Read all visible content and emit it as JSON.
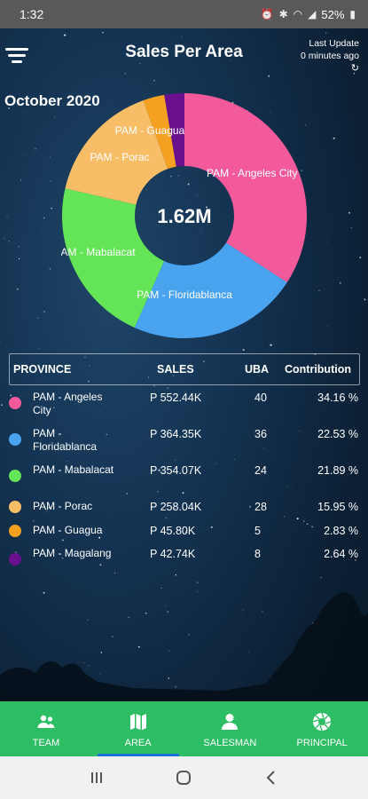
{
  "status_bar": {
    "time": "1:32",
    "battery": "52%",
    "icons": [
      "alarm-icon",
      "bluetooth-icon",
      "wifi-icon",
      "signal-icon",
      "battery-icon"
    ]
  },
  "header": {
    "title": "Sales Per Area",
    "last_update_label": "Last Update",
    "last_update_value": "0 minutes ago",
    "period": "October 2020"
  },
  "chart_data": {
    "type": "pie",
    "center_label": "1.62M",
    "slices": [
      {
        "label": "PAM - Angeles City",
        "value": 34.16,
        "color": "#f25a9b"
      },
      {
        "label": "PAM - Floridablanca",
        "value": 22.53,
        "color": "#4aa3ee"
      },
      {
        "label": "PAM - Mabalacat",
        "value": 21.89,
        "color": "#64e457"
      },
      {
        "label": "PAM - Porac",
        "value": 15.95,
        "color": "#f7bd67"
      },
      {
        "label": "PAM - Guagua",
        "value": 2.83,
        "color": "#f4a121"
      },
      {
        "label": "PAM - Magalang",
        "value": 2.64,
        "color": "#6a0f8e"
      }
    ]
  },
  "table": {
    "headers": {
      "province": "PROVINCE",
      "sales": "SALES",
      "uba": "UBA",
      "contribution": "Contribution"
    },
    "rows": [
      {
        "province": "PAM - Angeles City",
        "sales": "P 552.44K",
        "uba": "40",
        "contribution": "34.16 %",
        "color": "#f25a9b"
      },
      {
        "province": "PAM - Floridablanca",
        "sales": "P 364.35K",
        "uba": "36",
        "contribution": "22.53 %",
        "color": "#4aa3ee"
      },
      {
        "province": "PAM - Mabalacat",
        "sales": "P 354.07K",
        "uba": "24",
        "contribution": "21.89 %",
        "color": "#64e457"
      },
      {
        "province": "PAM - Porac",
        "sales": "P 258.04K",
        "uba": "28",
        "contribution": "15.95 %",
        "color": "#f7bd67"
      },
      {
        "province": "PAM - Guagua",
        "sales": "P 45.80K",
        "uba": "5",
        "contribution": "2.83 %",
        "color": "#f4a121"
      },
      {
        "province": "PAM - Magalang",
        "sales": "P 42.74K",
        "uba": "8",
        "contribution": "2.64 %",
        "color": "#6a0f8e"
      }
    ]
  },
  "bottom_nav": [
    {
      "label": "TEAM",
      "icon": "team-icon"
    },
    {
      "label": "AREA",
      "icon": "map-icon",
      "active": true
    },
    {
      "label": "SALESMAN",
      "icon": "person-icon"
    },
    {
      "label": "PRINCIPAL",
      "icon": "aperture-icon"
    }
  ],
  "colors": {
    "nav_bg": "#2dbd64",
    "active_indicator": "#1e6fd9"
  }
}
